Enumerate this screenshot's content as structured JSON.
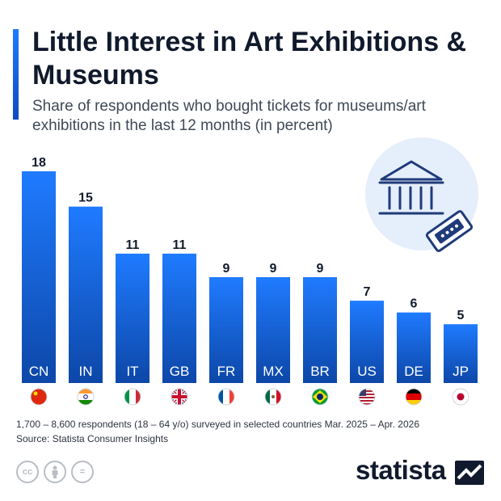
{
  "header": {
    "title": "Little Interest in Art Exhibitions & Museums",
    "subtitle": "Share of respondents who bought tickets for museums/art exhibitions in the last 12 months (in percent)"
  },
  "chart_data": {
    "type": "bar",
    "categories": [
      "CN",
      "IN",
      "IT",
      "GB",
      "FR",
      "MX",
      "BR",
      "US",
      "DE",
      "JP"
    ],
    "values": [
      18,
      15,
      11,
      11,
      9,
      9,
      9,
      7,
      6,
      5
    ],
    "title": "Little Interest in Art Exhibitions & Museums",
    "ylim": [
      0,
      18
    ],
    "grid": false,
    "legend": "none",
    "colors": {
      "bar_top": "#1f7bff",
      "bar_bottom": "#0d47a8"
    }
  },
  "flags": [
    "china-flag-icon",
    "india-flag-icon",
    "italy-flag-icon",
    "uk-flag-icon",
    "france-flag-icon",
    "mexico-flag-icon",
    "brazil-flag-icon",
    "usa-flag-icon",
    "germany-flag-icon",
    "japan-flag-icon"
  ],
  "footer": {
    "note": "1,700 – 8,600 respondents (18 – 64 y/o) surveyed in selected countries Mar. 2025 – Apr. 2026",
    "source": "Source: Statista Consumer Insights",
    "license_icons": [
      "creative-commons-icon",
      "attribution-icon",
      "no-derivatives-icon"
    ],
    "cc_text": "cc",
    "nd_text": "=",
    "brand": "statista"
  },
  "illustration": "museum-and-ticket-icon"
}
